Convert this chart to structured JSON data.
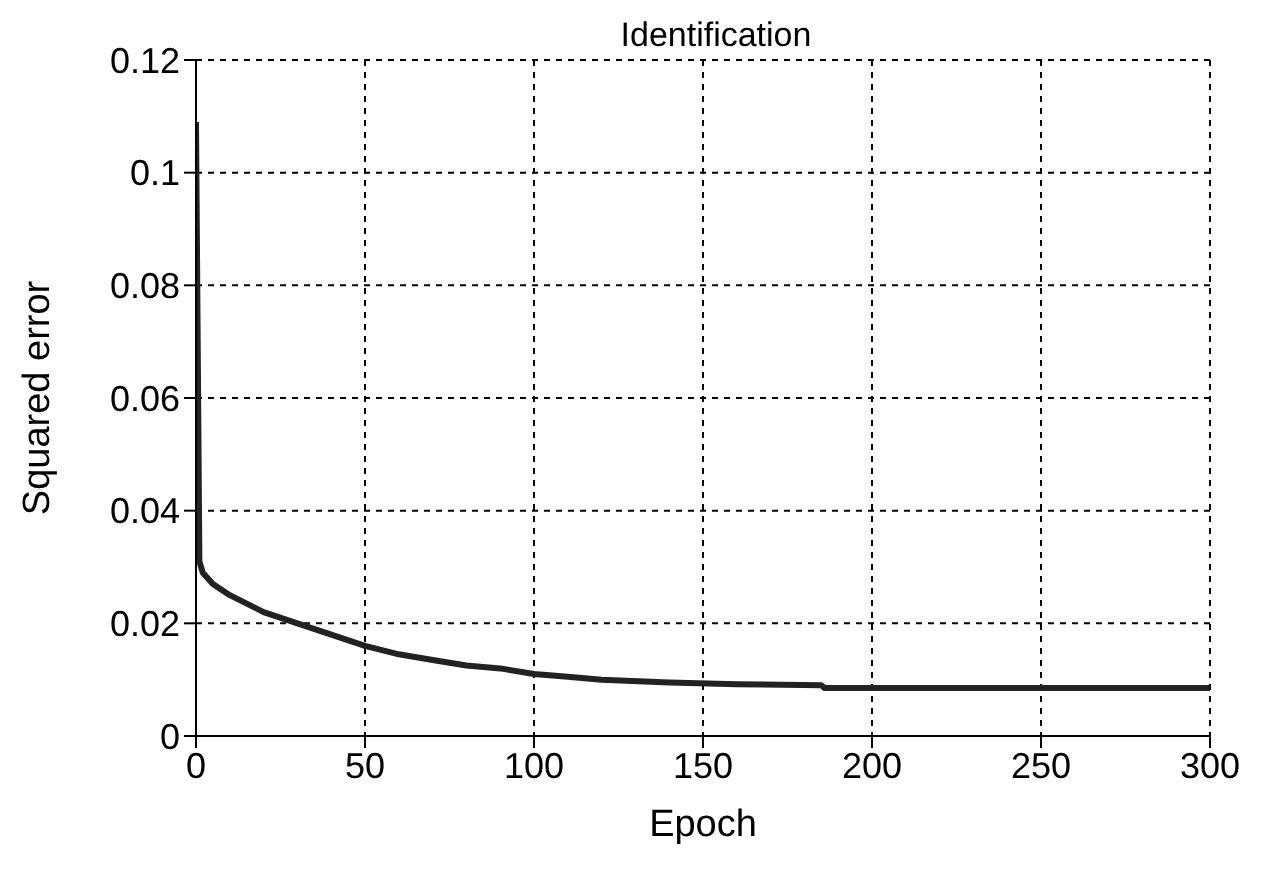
{
  "chart_data": {
    "type": "line",
    "title": "Identification",
    "xlabel": "Epoch",
    "ylabel": "Squared error",
    "x": [
      0,
      1,
      2,
      5,
      10,
      20,
      30,
      40,
      50,
      60,
      70,
      80,
      90,
      100,
      110,
      120,
      140,
      160,
      185,
      186,
      220,
      260,
      300
    ],
    "series": [
      {
        "color": "#222222",
        "values": [
          0.109,
          0.031,
          0.029,
          0.027,
          0.025,
          0.022,
          0.02,
          0.018,
          0.016,
          0.0145,
          0.0135,
          0.0125,
          0.012,
          0.011,
          0.0105,
          0.01,
          0.0095,
          0.0092,
          0.009,
          0.0085,
          0.0085,
          0.0085,
          0.0085
        ]
      }
    ],
    "xlim": [
      0,
      300
    ],
    "xticks": [
      0,
      50,
      100,
      150,
      200,
      250,
      300
    ],
    "ylim": [
      0,
      0.12
    ],
    "yticks": [
      0,
      0.02,
      0.04,
      0.06,
      0.08,
      0.1,
      0.12
    ],
    "grid": true,
    "marker": "none",
    "line_style": "solid"
  }
}
